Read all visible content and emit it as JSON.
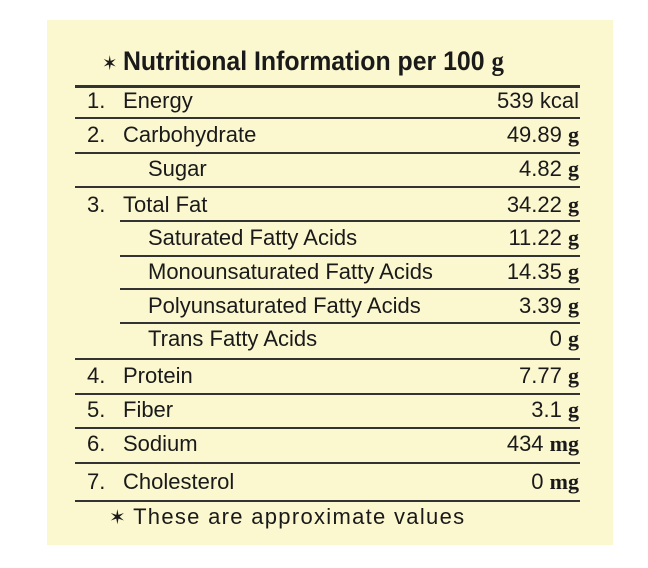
{
  "title": "Nutritional Information per 100",
  "title_unit": "g",
  "rows": [
    {
      "number": "1.",
      "name": "Energy",
      "amount": 539,
      "unit": "kcal"
    },
    {
      "number": "2.",
      "name": "Carbohydrate",
      "amount": 49.89,
      "unit": "g"
    },
    {
      "name": "Sugar",
      "amount": 4.82,
      "unit": "g"
    },
    {
      "number": "3.",
      "name": "Total Fat",
      "amount": 34.22,
      "unit": "g"
    },
    {
      "name": "Saturated Fatty Acids",
      "amount": 11.22,
      "unit": "g"
    },
    {
      "name": "Monounsaturated Fatty Acids",
      "amount": 14.35,
      "unit": "g"
    },
    {
      "name": "Polyunsaturated Fatty Acids",
      "amount": 3.39,
      "unit": "g"
    },
    {
      "name": "Trans Fatty Acids",
      "amount": 0,
      "unit": "g"
    },
    {
      "number": "4.",
      "name": "Protein",
      "amount": 7.77,
      "unit": "g"
    },
    {
      "number": "5.",
      "name": "Fiber",
      "amount": 3.1,
      "unit": "g"
    },
    {
      "number": "6.",
      "name": "Sodium",
      "amount": 434,
      "unit": "mg"
    },
    {
      "number": "7.",
      "name": "Cholesterol",
      "amount": 0,
      "unit": "mg"
    }
  ],
  "footer": "These are approximate values"
}
